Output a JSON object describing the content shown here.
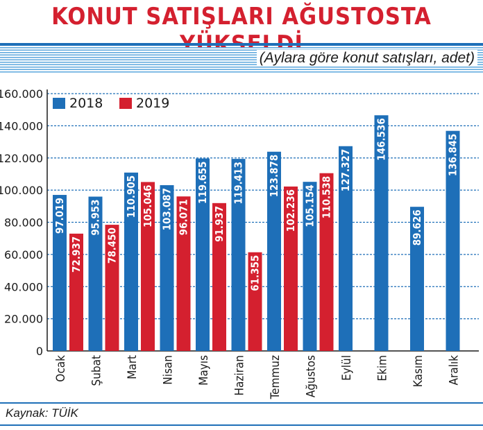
{
  "title": "KONUT SATIŞLARI AĞUSTOSTA YÜKSELDİ",
  "subtitle": "(Aylara göre konut satışları, adet)",
  "source": "Kaynak: TÜİK",
  "colors": {
    "s2018": "#1e6fb8",
    "s2019": "#d4202f",
    "grid": "#1e6fb8",
    "title": "#d4202f"
  },
  "chart_data": {
    "type": "bar",
    "categories": [
      "Ocak",
      "Şubat",
      "Mart",
      "Nisan",
      "Mayıs",
      "Haziran",
      "Temmuz",
      "Ağustos",
      "Eylül",
      "Ekim",
      "Kasım",
      "Aralık"
    ],
    "series": [
      {
        "name": "2018",
        "values": [
          97019,
          95953,
          110905,
          103087,
          119655,
          119413,
          123878,
          105154,
          127327,
          146536,
          89626,
          136845
        ],
        "labels": [
          "97.019",
          "95.953",
          "110.905",
          "103.087",
          "119.655",
          "119.413",
          "123.878",
          "105.154",
          "127.327",
          "146.536",
          "89.626",
          "136.845"
        ]
      },
      {
        "name": "2019",
        "values": [
          72937,
          78450,
          105046,
          96071,
          91937,
          61355,
          102236,
          110538,
          null,
          null,
          null,
          null
        ],
        "labels": [
          "72.937",
          "78.450",
          "105.046",
          "96.071",
          "91.937",
          "61.355",
          "102.236",
          "110.538",
          null,
          null,
          null,
          null
        ]
      }
    ],
    "yticks": [
      0,
      20000,
      40000,
      60000,
      80000,
      100000,
      120000,
      140000,
      160000
    ],
    "ytick_labels": [
      "0",
      "20.000",
      "40.000",
      "60.000",
      "80.000",
      "100.000",
      "120.000",
      "140.000",
      "160.000"
    ],
    "ylim": [
      0,
      160000
    ],
    "grid": true,
    "legend": "top-left"
  }
}
